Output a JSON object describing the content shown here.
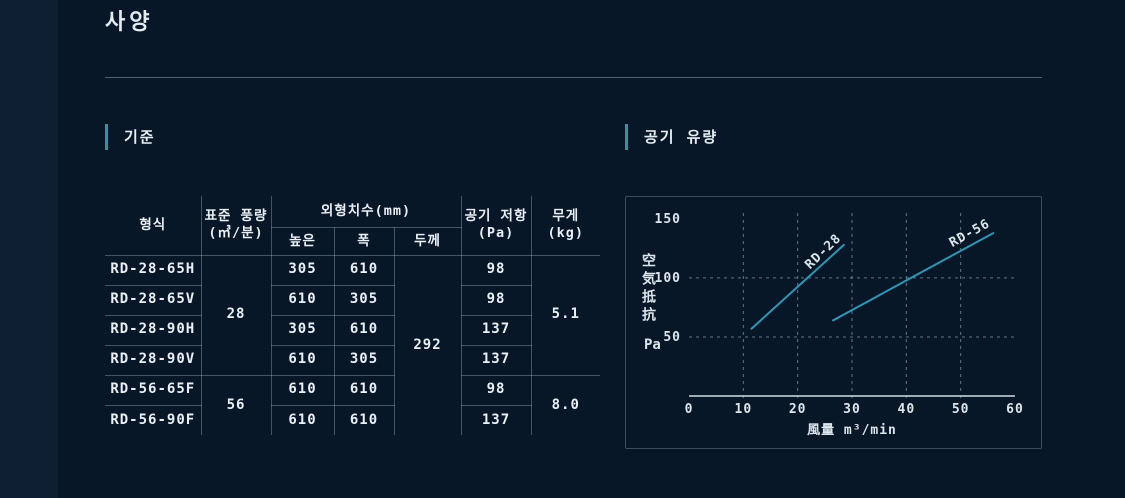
{
  "page": {
    "title": "사양"
  },
  "colors": {
    "accent": "#2e94aa",
    "chart_line": "#2d96b4"
  },
  "sections": {
    "standard_label": "기준",
    "airflow_label": "공기 유량"
  },
  "table": {
    "headers": {
      "model": "형식",
      "airflow_line1": "표준 풍량",
      "airflow_line2": "(㎥/분)",
      "dimensions": "외형치수(mm)",
      "height": "높은",
      "width": "폭",
      "depth": "두께",
      "resistance_line1": "공기 저항",
      "resistance_line2": "(Pa)",
      "weight_line1": "무게",
      "weight_line2": "(kg)"
    },
    "merged": {
      "airflow_28": "28",
      "airflow_56": "56",
      "depth_all": "292",
      "weight_28": "5.1",
      "weight_56": "8.0"
    },
    "rows": [
      {
        "model": "RD-28-65H",
        "height": "305",
        "width": "610",
        "resistance": "98"
      },
      {
        "model": "RD-28-65V",
        "height": "610",
        "width": "305",
        "resistance": "98"
      },
      {
        "model": "RD-28-90H",
        "height": "305",
        "width": "610",
        "resistance": "137"
      },
      {
        "model": "RD-28-90V",
        "height": "610",
        "width": "305",
        "resistance": "137"
      },
      {
        "model": "RD-56-65F",
        "height": "610",
        "width": "610",
        "resistance": "98"
      },
      {
        "model": "RD-56-90F",
        "height": "610",
        "width": "610",
        "resistance": "137"
      }
    ]
  },
  "chart_data": {
    "type": "line",
    "title": "공기 유량",
    "xlabel": "風量 m³/min",
    "ylabel": "空気抵抗",
    "ylabel_unit": "Pa",
    "xlim": [
      0,
      60
    ],
    "ylim": [
      0,
      155
    ],
    "x_ticks": [
      0,
      10,
      20,
      30,
      40,
      50,
      60
    ],
    "y_ticks": [
      50,
      100,
      150
    ],
    "x_gridlines": [
      10,
      20,
      30,
      40,
      50
    ],
    "y_gridlines": [
      50,
      100
    ],
    "grid_style": "dashed",
    "legend_position": "inline-labels",
    "series": [
      {
        "name": "RD-28",
        "color": "#2d96b4",
        "points": [
          [
            11.5,
            57
          ],
          [
            28.5,
            128
          ]
        ],
        "label_at": [
          25.2,
          120
        ],
        "label_angle": -44
      },
      {
        "name": "RD-56",
        "color": "#2d96b4",
        "points": [
          [
            26.5,
            64
          ],
          [
            56,
            138
          ]
        ],
        "label_at": [
          52,
          135
        ],
        "label_angle": -29
      }
    ]
  }
}
